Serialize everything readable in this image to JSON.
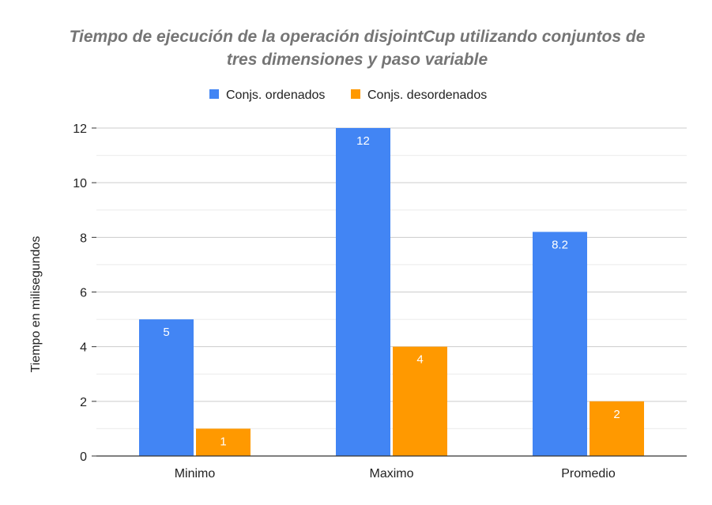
{
  "chart_data": {
    "type": "bar",
    "title_lines": [
      "Tiempo de ejecución de la operación disjointCup utilizando conjuntos de",
      "tres dimensiones y paso variable"
    ],
    "xlabel": "",
    "ylabel": "Tiempo en  milisegundos",
    "categories": [
      "Minimo",
      "Maximo",
      "Promedio"
    ],
    "series": [
      {
        "name": "Conjs. ordenados",
        "color": "#4285f4",
        "values": [
          5,
          12,
          8.2
        ],
        "value_labels": [
          "5",
          "12",
          "8.2"
        ]
      },
      {
        "name": "Conjs. desordenados",
        "color": "#ff9900",
        "values": [
          1,
          4,
          2
        ],
        "value_labels": [
          "1",
          "4",
          "2"
        ]
      }
    ],
    "ylim": [
      0,
      12
    ],
    "yticks": [
      0,
      2,
      4,
      6,
      8,
      10,
      12
    ],
    "ytick_labels": [
      "0",
      "2",
      "4",
      "6",
      "8",
      "10",
      "12"
    ],
    "grid": true,
    "minor_gridlines": true,
    "legend_position": "top"
  }
}
